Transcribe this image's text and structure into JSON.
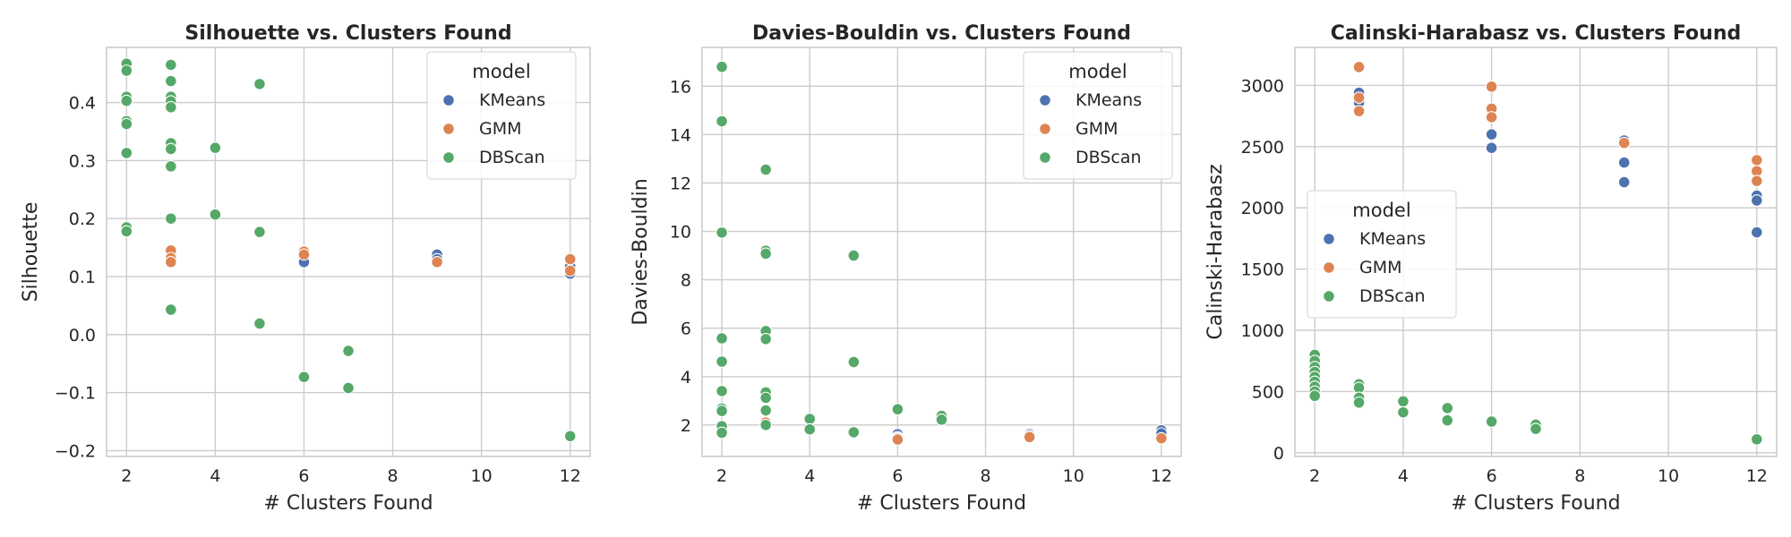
{
  "colors": {
    "KMeans": "#4c72b0",
    "GMM": "#dd8452",
    "DBScan": "#55a868"
  },
  "chart_data": [
    {
      "type": "scatter",
      "title": "Silhouette vs. Clusters Found",
      "xlabel": "# Clusters Found",
      "ylabel": "Silhouette",
      "xlim": [
        1.55,
        12.45
      ],
      "ylim": [
        -0.21,
        0.495
      ],
      "xticks": [
        2,
        4,
        6,
        8,
        10,
        12
      ],
      "yticks": [
        -0.2,
        -0.1,
        0.0,
        0.1,
        0.2,
        0.3,
        0.4
      ],
      "ytick_labels": [
        "−0.2",
        "−0.1",
        "0.0",
        "0.1",
        "0.2",
        "0.3",
        "0.4"
      ],
      "grid": true,
      "legend": {
        "title": "model",
        "placement": "top-right"
      },
      "series": [
        {
          "name": "KMeans",
          "color": "#4c72b0",
          "x": [
            3,
            3,
            6,
            6,
            9,
            9,
            12,
            12
          ],
          "y": [
            0.14,
            0.128,
            0.13,
            0.125,
            0.138,
            0.13,
            0.118,
            0.105
          ]
        },
        {
          "name": "GMM",
          "color": "#dd8452",
          "x": [
            3,
            3,
            3,
            6,
            6,
            9,
            12,
            12
          ],
          "y": [
            0.145,
            0.132,
            0.125,
            0.143,
            0.138,
            0.125,
            0.13,
            0.11
          ]
        },
        {
          "name": "DBScan",
          "color": "#55a868",
          "x": [
            2,
            2,
            2,
            2,
            2,
            2,
            2,
            2,
            2,
            3,
            3,
            3,
            3,
            3,
            3,
            3,
            3,
            3,
            3,
            4,
            4,
            5,
            5,
            5,
            6,
            7,
            7,
            12
          ],
          "y": [
            0.467,
            0.455,
            0.41,
            0.403,
            0.368,
            0.363,
            0.313,
            0.185,
            0.178,
            0.465,
            0.437,
            0.41,
            0.402,
            0.392,
            0.33,
            0.32,
            0.29,
            0.2,
            0.043,
            0.322,
            0.207,
            0.432,
            0.177,
            0.019,
            -0.073,
            -0.028,
            -0.092,
            -0.175
          ]
        }
      ]
    },
    {
      "type": "scatter",
      "title": "Davies-Bouldin vs. Clusters Found",
      "xlabel": "# Clusters Found",
      "ylabel": "Davies-Bouldin",
      "xlim": [
        1.55,
        12.45
      ],
      "ylim": [
        0.7,
        17.6
      ],
      "xticks": [
        2,
        4,
        6,
        8,
        10,
        12
      ],
      "yticks": [
        2,
        4,
        6,
        8,
        10,
        12,
        14,
        16
      ],
      "ytick_labels": [
        "2",
        "4",
        "6",
        "8",
        "10",
        "12",
        "14",
        "16"
      ],
      "grid": true,
      "legend": {
        "title": "model",
        "placement": "top-right"
      },
      "series": [
        {
          "name": "KMeans",
          "color": "#4c72b0",
          "x": [
            3,
            6,
            6,
            9,
            9,
            12,
            12
          ],
          "y": [
            2.05,
            1.62,
            1.5,
            1.62,
            1.55,
            1.78,
            1.65
          ]
        },
        {
          "name": "GMM",
          "color": "#dd8452",
          "x": [
            3,
            6,
            6,
            9,
            12
          ],
          "y": [
            2.1,
            1.45,
            1.4,
            1.5,
            1.45
          ]
        },
        {
          "name": "DBScan",
          "color": "#55a868",
          "x": [
            2,
            2,
            2,
            2,
            2,
            2,
            2,
            2,
            2,
            2,
            3,
            3,
            3,
            3,
            3,
            3,
            3,
            3,
            3,
            4,
            4,
            5,
            5,
            5,
            6,
            7,
            7
          ],
          "y": [
            16.8,
            14.55,
            9.95,
            5.58,
            4.62,
            3.4,
            2.68,
            2.58,
            1.95,
            1.68,
            12.55,
            9.2,
            9.08,
            5.88,
            5.55,
            3.35,
            3.12,
            2.6,
            2.0,
            2.25,
            1.82,
            9.0,
            4.6,
            1.7,
            2.65,
            2.38,
            2.22
          ]
        }
      ]
    },
    {
      "type": "scatter",
      "title": "Calinski-Harabasz vs. Clusters Found",
      "xlabel": "# Clusters Found",
      "ylabel": "Calinski-Harabasz",
      "xlim": [
        1.55,
        12.45
      ],
      "ylim": [
        -30,
        3310
      ],
      "xticks": [
        2,
        4,
        6,
        8,
        10,
        12
      ],
      "yticks": [
        0,
        500,
        1000,
        1500,
        2000,
        2500,
        3000
      ],
      "ytick_labels": [
        "0",
        "500",
        "1000",
        "1500",
        "2000",
        "2500",
        "3000"
      ],
      "grid": true,
      "legend": {
        "title": "model",
        "placement": "center-left"
      },
      "series": [
        {
          "name": "KMeans",
          "color": "#4c72b0",
          "x": [
            3,
            3,
            6,
            6,
            9,
            9,
            9,
            12,
            12,
            12
          ],
          "y": [
            2940,
            2860,
            2600,
            2490,
            2550,
            2370,
            2210,
            2100,
            2060,
            1800
          ]
        },
        {
          "name": "GMM",
          "color": "#dd8452",
          "x": [
            3,
            3,
            3,
            6,
            6,
            6,
            9,
            12,
            12,
            12
          ],
          "y": [
            3150,
            2900,
            2790,
            2990,
            2810,
            2740,
            2530,
            2390,
            2300,
            2220
          ]
        },
        {
          "name": "DBScan",
          "color": "#55a868",
          "x": [
            2,
            2,
            2,
            2,
            2,
            2,
            2,
            2,
            2,
            3,
            3,
            3,
            3,
            4,
            4,
            5,
            5,
            6,
            7,
            7,
            12
          ],
          "y": [
            800,
            750,
            700,
            660,
            620,
            580,
            540,
            500,
            465,
            560,
            530,
            450,
            410,
            420,
            330,
            365,
            265,
            255,
            230,
            195,
            110
          ]
        }
      ]
    }
  ]
}
